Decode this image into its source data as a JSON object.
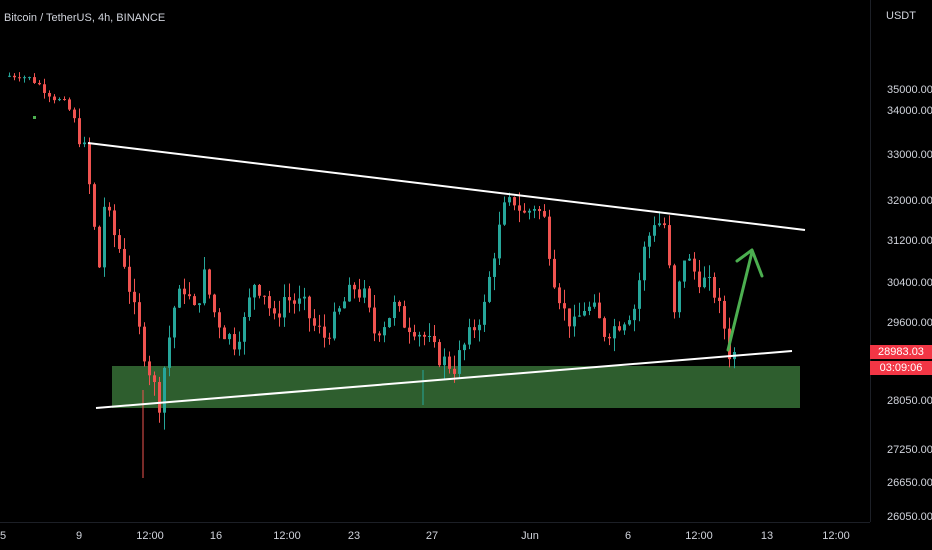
{
  "header": {
    "symbol": "Bitcoin / TetherUS, 4h, BINANCE",
    "currency_label": "USDT"
  },
  "last_price": {
    "value": "28983.03",
    "countdown": "03:09:06",
    "color": "#f23645"
  },
  "colors": {
    "up": "#26a69a",
    "down": "#ef5350",
    "trendline": "#ffffff",
    "support_zone": "#2e5e2e",
    "arrow": "#4caf50"
  },
  "chart_data": {
    "type": "candlestick",
    "symbol": "BTCUSDT",
    "interval": "4h",
    "y_ticks": [
      "35000.00",
      "34000.00",
      "33000.00",
      "32000.00",
      "31200.00",
      "30400.00",
      "29600.00",
      "28050.00",
      "27250.00",
      "26650.00",
      "26050.00"
    ],
    "x_ticks": [
      "5",
      "9",
      "12:00",
      "16",
      "12:00",
      "23",
      "27",
      "Jun",
      "6",
      "12:00",
      "13",
      "12:00"
    ],
    "price_path": [
      [
        0,
        35600
      ],
      [
        3,
        35700
      ],
      [
        6,
        35400
      ],
      [
        8,
        35000
      ],
      [
        10,
        34600
      ],
      [
        12,
        34300
      ],
      [
        14,
        33700
      ],
      [
        16,
        33100
      ],
      [
        17,
        32300
      ],
      [
        18,
        31400
      ],
      [
        19,
        30700
      ],
      [
        20,
        31900
      ],
      [
        22,
        31300
      ],
      [
        24,
        30800
      ],
      [
        26,
        29800
      ],
      [
        28,
        29000
      ],
      [
        30,
        28300
      ],
      [
        31,
        28050
      ],
      [
        32,
        28700
      ],
      [
        34,
        29900
      ],
      [
        36,
        30300
      ],
      [
        38,
        29800
      ],
      [
        40,
        30500
      ],
      [
        42,
        29800
      ],
      [
        44,
        29400
      ],
      [
        46,
        29200
      ],
      [
        48,
        29600
      ],
      [
        50,
        30400
      ],
      [
        52,
        30200
      ],
      [
        54,
        29600
      ],
      [
        56,
        30100
      ],
      [
        58,
        30000
      ],
      [
        60,
        29900
      ],
      [
        62,
        29500
      ],
      [
        64,
        29300
      ],
      [
        66,
        29600
      ],
      [
        68,
        30000
      ],
      [
        70,
        30300
      ],
      [
        72,
        30100
      ],
      [
        74,
        29400
      ],
      [
        76,
        29600
      ],
      [
        78,
        29900
      ],
      [
        80,
        29600
      ],
      [
        82,
        29500
      ],
      [
        84,
        29300
      ],
      [
        86,
        29000
      ],
      [
        88,
        28800
      ],
      [
        90,
        28700
      ],
      [
        92,
        29100
      ],
      [
        94,
        29500
      ],
      [
        96,
        29900
      ],
      [
        98,
        31000
      ],
      [
        100,
        31800
      ],
      [
        102,
        32000
      ],
      [
        104,
        31700
      ],
      [
        106,
        31900
      ],
      [
        108,
        31600
      ],
      [
        110,
        30500
      ],
      [
        112,
        29800
      ],
      [
        114,
        29500
      ],
      [
        116,
        29900
      ],
      [
        118,
        29800
      ],
      [
        120,
        29400
      ],
      [
        122,
        29500
      ],
      [
        124,
        29700
      ],
      [
        126,
        29900
      ],
      [
        128,
        31000
      ],
      [
        130,
        31600
      ],
      [
        132,
        31500
      ],
      [
        134,
        29700
      ],
      [
        136,
        30900
      ],
      [
        138,
        30600
      ],
      [
        140,
        30400
      ],
      [
        142,
        30200
      ],
      [
        144,
        29500
      ],
      [
        145,
        28983
      ]
    ],
    "price_range": [
      26050,
      36000
    ],
    "annotations": [
      {
        "type": "trendline",
        "role": "resistance",
        "from": {
          "bar": 15,
          "price": 33150
        },
        "to": {
          "bar": 165,
          "price": 31350
        }
      },
      {
        "type": "trendline",
        "role": "support",
        "from": {
          "bar": 20,
          "price": 28050
        },
        "to": {
          "bar": 165,
          "price": 29050
        }
      },
      {
        "type": "zone",
        "role": "support",
        "price_low": 28050,
        "price_high": 28850,
        "from_bar": 23,
        "to_bar": 163
      },
      {
        "type": "arrow",
        "direction": "up",
        "from": {
          "bar": 149,
          "price": 29150
        },
        "to": {
          "bar": 155,
          "price": 31200
        }
      }
    ]
  }
}
